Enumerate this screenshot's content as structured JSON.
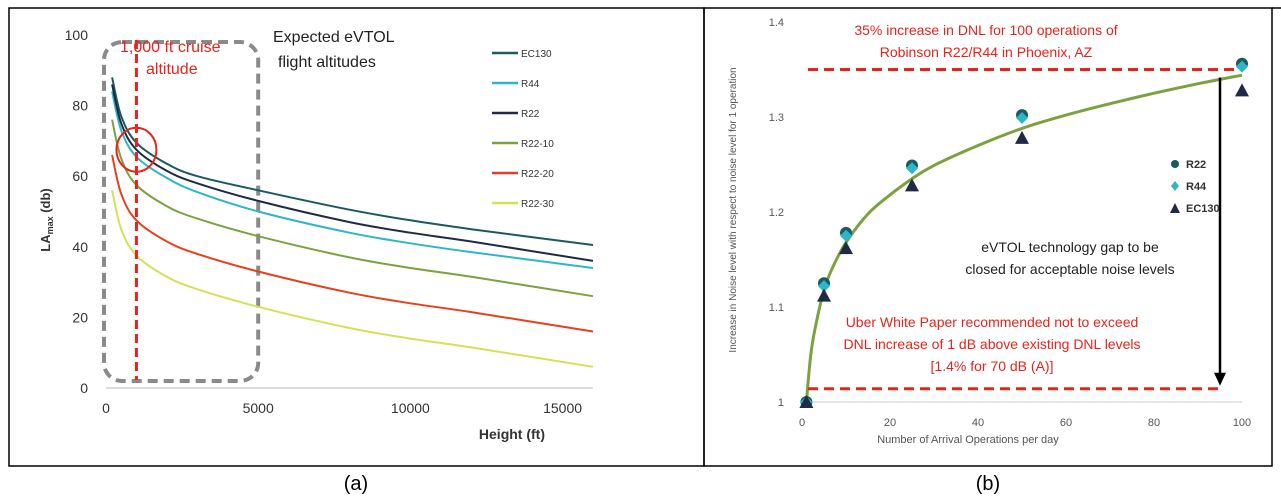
{
  "panels": {
    "a_label": "(a)",
    "b_label": "(b)"
  },
  "chart_data": [
    {
      "type": "line",
      "xlabel": "Height (ft)",
      "ylabel_main": "LA",
      "ylabel_sub": "max",
      "ylabel_suffix": " (db)",
      "xlim": [
        0,
        16000
      ],
      "ylim": [
        0,
        100
      ],
      "xticks": [
        0,
        5000,
        10000,
        15000
      ],
      "yticks": [
        0,
        20,
        40,
        60,
        80,
        100
      ],
      "grid": false,
      "legend_position": "top-right",
      "series": [
        {
          "name": "EC130",
          "color": "#1b5a5f",
          "x": [
            200,
            500,
            1000,
            2000,
            3000,
            5000,
            8000,
            10000,
            12000,
            16000
          ],
          "y": [
            88,
            77,
            69.5,
            63.5,
            60,
            56,
            50.5,
            47.5,
            45,
            40.5
          ]
        },
        {
          "name": "R44",
          "color": "#2fb5c8",
          "x": [
            200,
            500,
            1000,
            2000,
            3000,
            5000,
            8000,
            10000,
            12000,
            16000
          ],
          "y": [
            84,
            73,
            65.5,
            59.5,
            55.5,
            50,
            44,
            41,
            38.5,
            34
          ]
        },
        {
          "name": "R22",
          "color": "#1f2a44",
          "x": [
            200,
            500,
            1000,
            2000,
            3000,
            5000,
            8000,
            10000,
            12000,
            16000
          ],
          "y": [
            86,
            75,
            67.5,
            61.5,
            58,
            53,
            47,
            44,
            41.5,
            36
          ]
        },
        {
          "name": "R22-10",
          "color": "#7ba23f",
          "x": [
            200,
            500,
            1000,
            2000,
            3000,
            5000,
            8000,
            10000,
            12000,
            16000
          ],
          "y": [
            76,
            65,
            57.5,
            51.5,
            48,
            43,
            37,
            34,
            31.5,
            26
          ]
        },
        {
          "name": "R22-20",
          "color": "#e8401c",
          "x": [
            200,
            500,
            1000,
            2000,
            3000,
            5000,
            8000,
            10000,
            12000,
            16000
          ],
          "y": [
            66,
            55,
            47.5,
            41.5,
            38,
            33,
            27,
            24,
            21.5,
            16
          ]
        },
        {
          "name": "R22-30",
          "color": "#d4e157",
          "x": [
            200,
            500,
            1000,
            2000,
            3000,
            5000,
            8000,
            10000,
            12000,
            16000
          ],
          "y": [
            56,
            45,
            37.5,
            31.5,
            28,
            23,
            17,
            14,
            11.5,
            6
          ]
        }
      ],
      "annotations": {
        "cruise_line_label_1": "1,000 ft cruise",
        "cruise_line_label_2": "altitude",
        "cruise_x": 1000,
        "box_label_1": "Expected eVTOL",
        "box_label_2": "flight altitudes",
        "box_x_range": [
          0,
          5000
        ],
        "box_y_range": [
          2,
          98
        ],
        "circle_center": [
          1000,
          67.5
        ],
        "accent_color": "#e8231c",
        "box_color": "#8a8a8a"
      }
    },
    {
      "type": "scatter",
      "xlabel": "Number of Arrival Operations per day",
      "ylabel": "Increase in Noise level with respect to noise level for 1 operation",
      "xlim": [
        0,
        100
      ],
      "ylim": [
        1,
        1.4
      ],
      "xticks": [
        0,
        20,
        40,
        60,
        80,
        100
      ],
      "yticks": [
        1,
        1.1,
        1.2,
        1.3,
        1.4
      ],
      "ytick_labels": [
        "1",
        "1.1",
        "1.2",
        "1.3",
        "1.4"
      ],
      "grid": false,
      "legend_position": "right",
      "series": [
        {
          "name": "R22",
          "color": "#1b5a5f",
          "marker": "circle",
          "x": [
            1,
            5,
            10,
            25,
            50,
            100
          ],
          "y": [
            1.0,
            1.125,
            1.178,
            1.249,
            1.302,
            1.356
          ]
        },
        {
          "name": "R44",
          "color": "#2fb5c8",
          "marker": "diamond",
          "x": [
            1,
            5,
            10,
            25,
            50,
            100
          ],
          "y": [
            1.0,
            1.122,
            1.175,
            1.246,
            1.299,
            1.353
          ]
        },
        {
          "name": "EC130",
          "color": "#1f2a44",
          "marker": "triangle",
          "x": [
            1,
            5,
            10,
            25,
            50,
            100
          ],
          "y": [
            1.0,
            1.112,
            1.162,
            1.228,
            1.278,
            1.328
          ]
        }
      ],
      "trend": {
        "color": "#7ba23f",
        "x": [
          1,
          2,
          3,
          5,
          7,
          10,
          15,
          20,
          25,
          30,
          40,
          50,
          60,
          70,
          80,
          90,
          100
        ],
        "y": [
          1.0,
          1.05,
          1.078,
          1.118,
          1.142,
          1.168,
          1.198,
          1.218,
          1.235,
          1.249,
          1.27,
          1.288,
          1.302,
          1.314,
          1.325,
          1.335,
          1.344
        ]
      },
      "annotations": {
        "top_text_1": "35% increase in DNL for 100 operations of",
        "top_text_2": "Robinson R22/R44 in Phoenix, AZ",
        "top_line_y": 1.35,
        "bottom_line_y": 1.014,
        "arrow_x": 95,
        "gap_text_1": "eVTOL technology gap to be",
        "gap_text_2": "closed for acceptable noise levels",
        "uber_text_1": "Uber White Paper recommended not to exceed",
        "uber_text_2": "DNL increase of 1 dB  above existing DNL levels",
        "uber_text_3": "[1.4% for 70 dB (A)]",
        "accent_color": "#e8231c"
      }
    }
  ]
}
